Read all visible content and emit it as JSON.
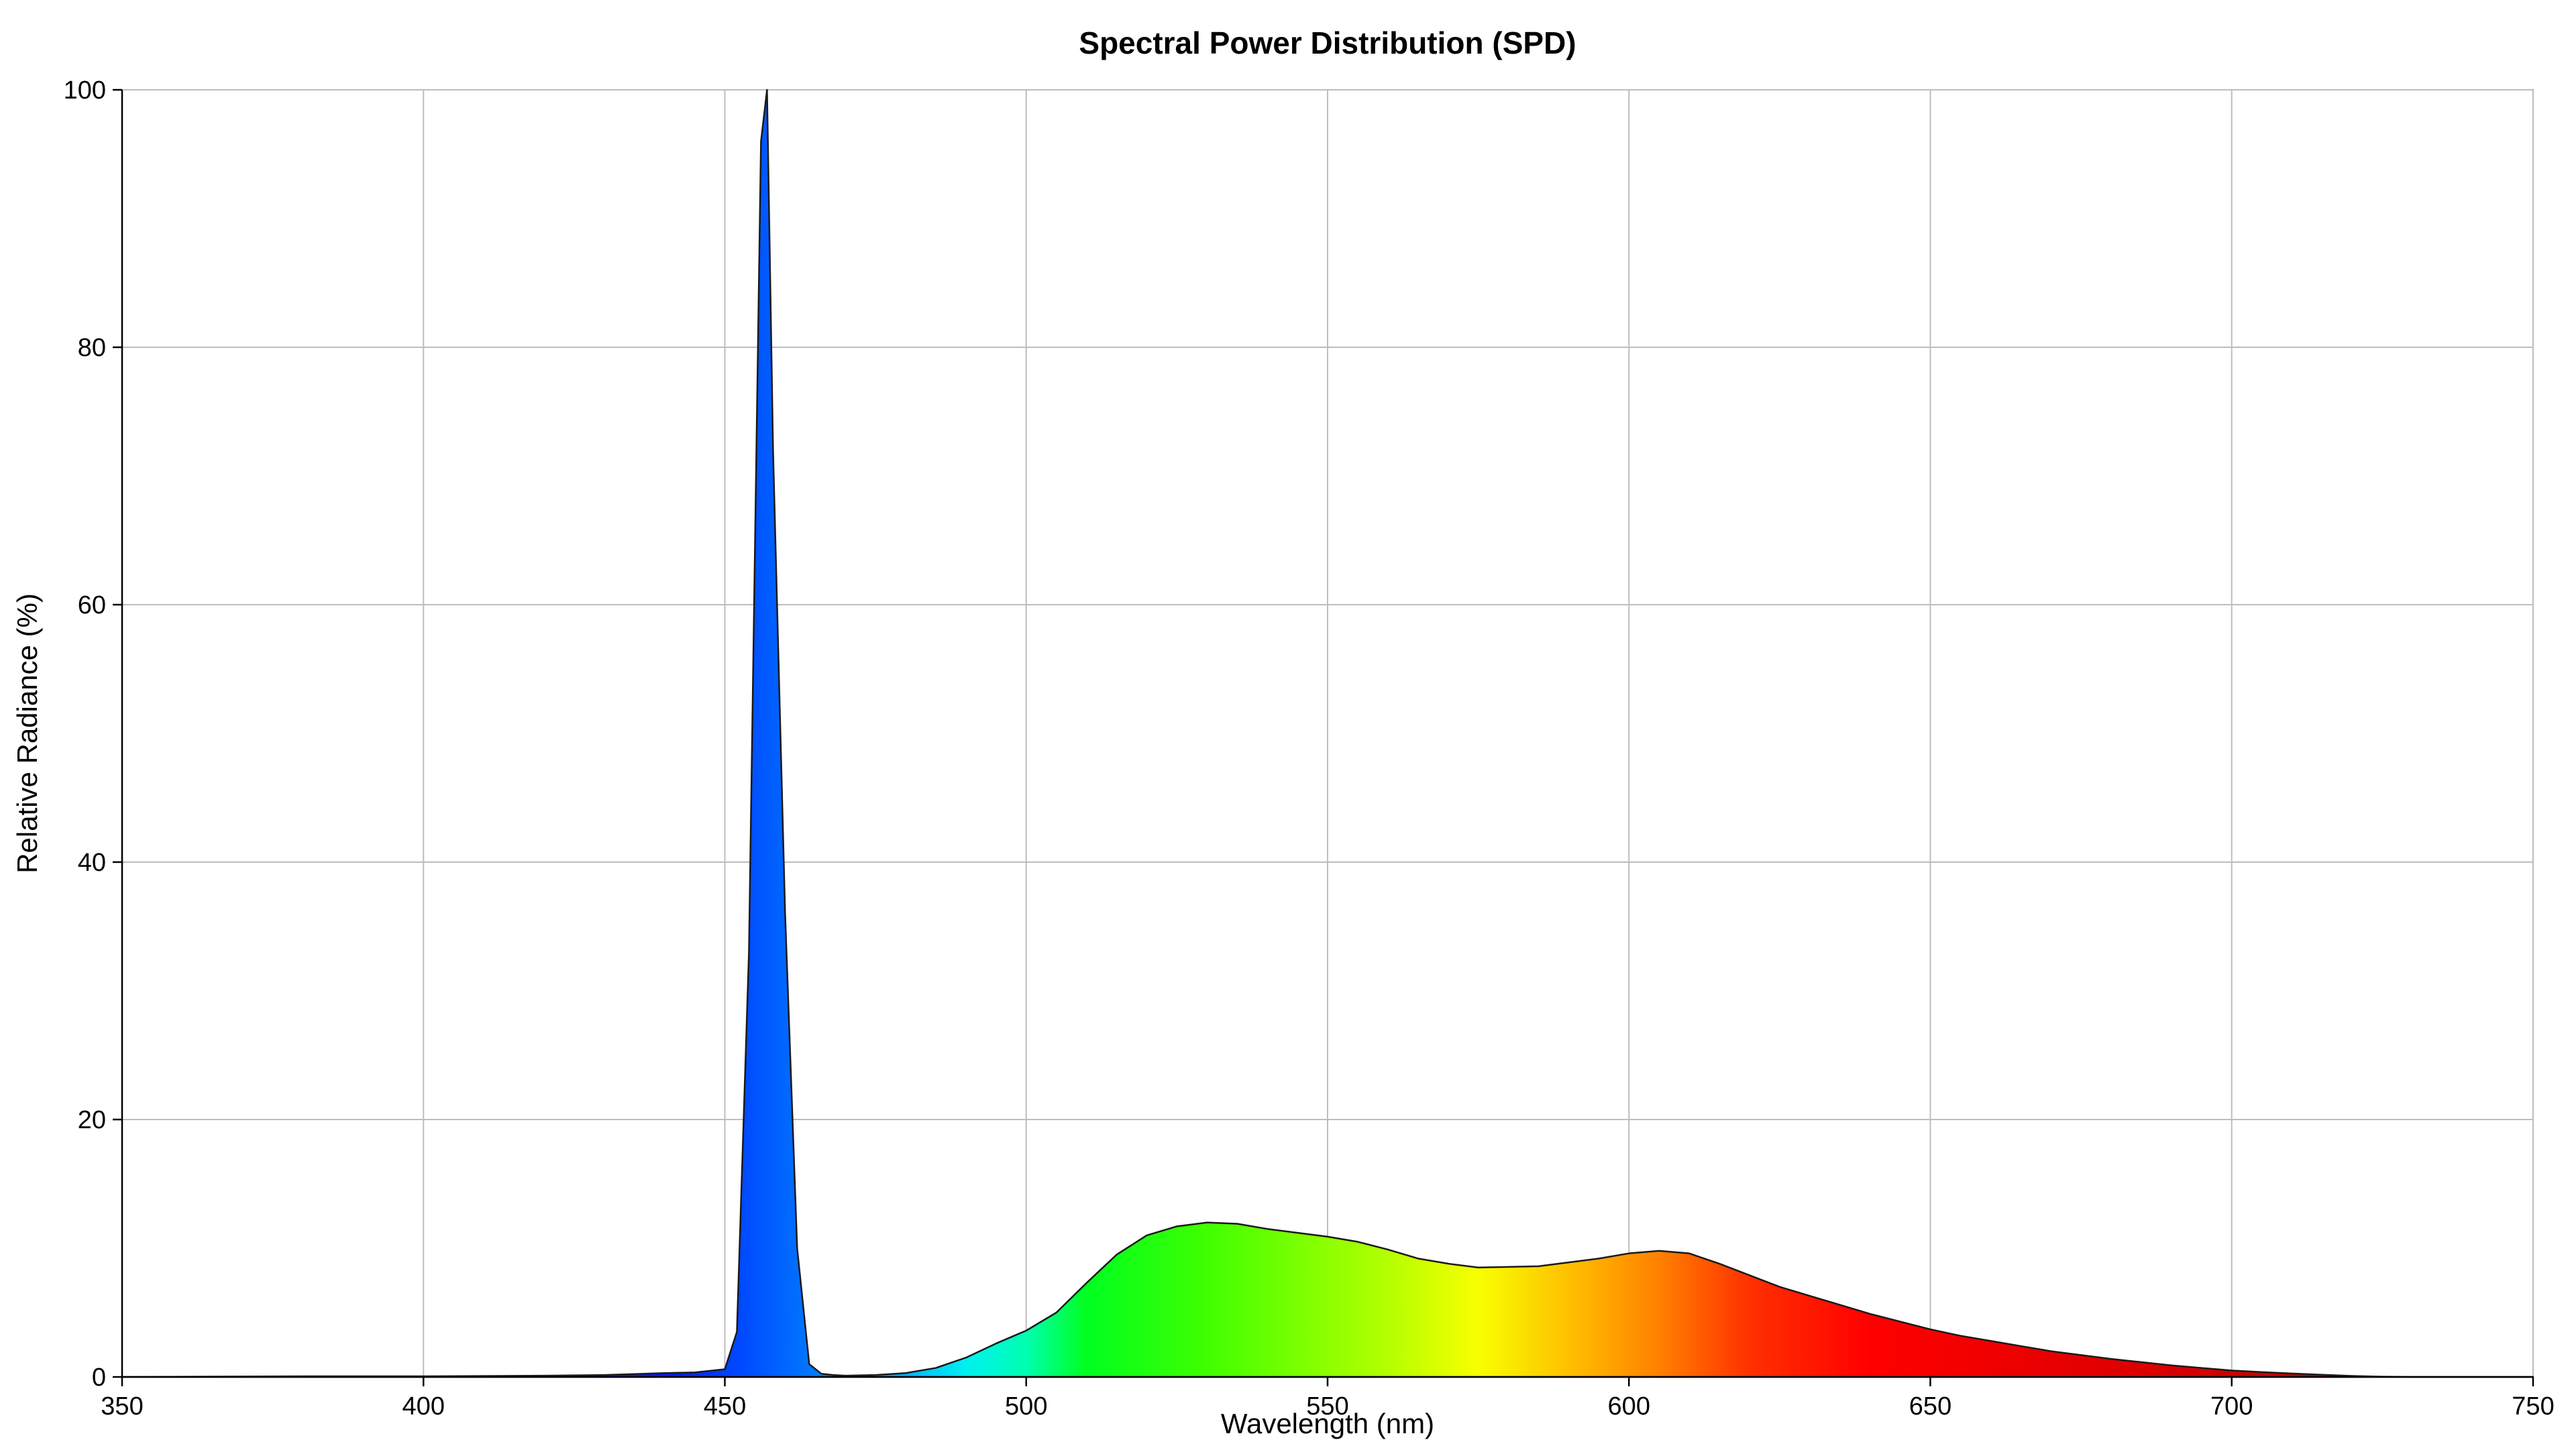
{
  "chart_data": {
    "type": "area",
    "title": "Spectral Power Distribution (SPD)",
    "xlabel": "Wavelength (nm)",
    "ylabel": "Relative Radiance (%)",
    "xlim": [
      350,
      750
    ],
    "ylim": [
      0,
      100
    ],
    "xticks": [
      350,
      400,
      450,
      500,
      550,
      600,
      650,
      700,
      750
    ],
    "yticks": [
      0,
      20,
      40,
      60,
      80,
      100
    ],
    "grid": true,
    "fill": "wavelength-spectrum gradient",
    "x": [
      350,
      380,
      400,
      420,
      430,
      440,
      445,
      450,
      452,
      454,
      456,
      457,
      458,
      460,
      462,
      464,
      466,
      468,
      470,
      475,
      480,
      485,
      490,
      495,
      500,
      505,
      510,
      515,
      520,
      525,
      530,
      535,
      540,
      545,
      550,
      555,
      560,
      565,
      570,
      575,
      580,
      585,
      590,
      595,
      600,
      605,
      610,
      615,
      620,
      625,
      630,
      635,
      640,
      645,
      650,
      655,
      660,
      665,
      670,
      675,
      680,
      685,
      690,
      695,
      700,
      705,
      710,
      715,
      720,
      725,
      730,
      740,
      750
    ],
    "y": [
      0.0,
      0.05,
      0.05,
      0.1,
      0.15,
      0.3,
      0.35,
      0.6,
      3.5,
      33,
      96,
      100,
      72,
      36,
      10,
      1.0,
      0.25,
      0.15,
      0.1,
      0.15,
      0.3,
      0.7,
      1.5,
      2.6,
      3.6,
      5.0,
      7.3,
      9.5,
      11.0,
      11.7,
      12.0,
      11.9,
      11.5,
      11.2,
      10.9,
      10.5,
      9.9,
      9.2,
      8.8,
      8.5,
      8.55,
      8.6,
      8.9,
      9.2,
      9.6,
      9.8,
      9.6,
      8.8,
      7.9,
      7.0,
      6.3,
      5.6,
      4.9,
      4.3,
      3.7,
      3.2,
      2.8,
      2.4,
      2.0,
      1.7,
      1.4,
      1.15,
      0.9,
      0.7,
      0.5,
      0.38,
      0.27,
      0.17,
      0.08,
      0.02,
      0.0,
      0.0,
      0.0
    ]
  }
}
